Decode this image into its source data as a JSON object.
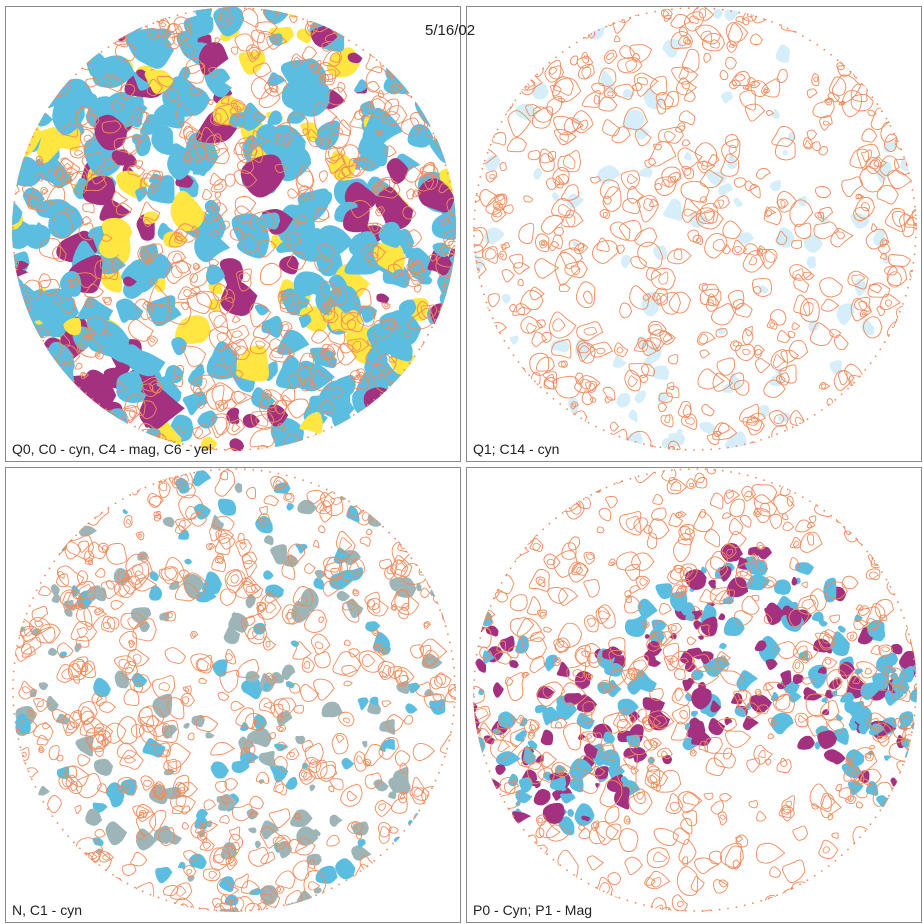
{
  "date_label": "5/16/02",
  "colors": {
    "contour": "#f08a5a",
    "cyan": "#5bbde0",
    "cyan_pale": "#d6eefa",
    "magenta": "#a3317f",
    "yellow": "#ffe640",
    "gray_teal": "#9eb5b8",
    "panel_border": "#8a8a8a"
  },
  "panels": [
    {
      "caption": "Q0, C0 - cyn, C4 - mag, C6 - yel",
      "fill_cover": 0.55,
      "fill_mode": "dense"
    },
    {
      "caption": "Q1; C14 - cyn",
      "fill_cover": 0.12,
      "fill_mode": "pale"
    },
    {
      "caption": "N, C1 - cyn",
      "fill_cover": 0.28,
      "fill_mode": "gray"
    },
    {
      "caption": "P0 - Cyn; P1 - Mag",
      "fill_cover": 0.35,
      "fill_mode": "band"
    }
  ]
}
